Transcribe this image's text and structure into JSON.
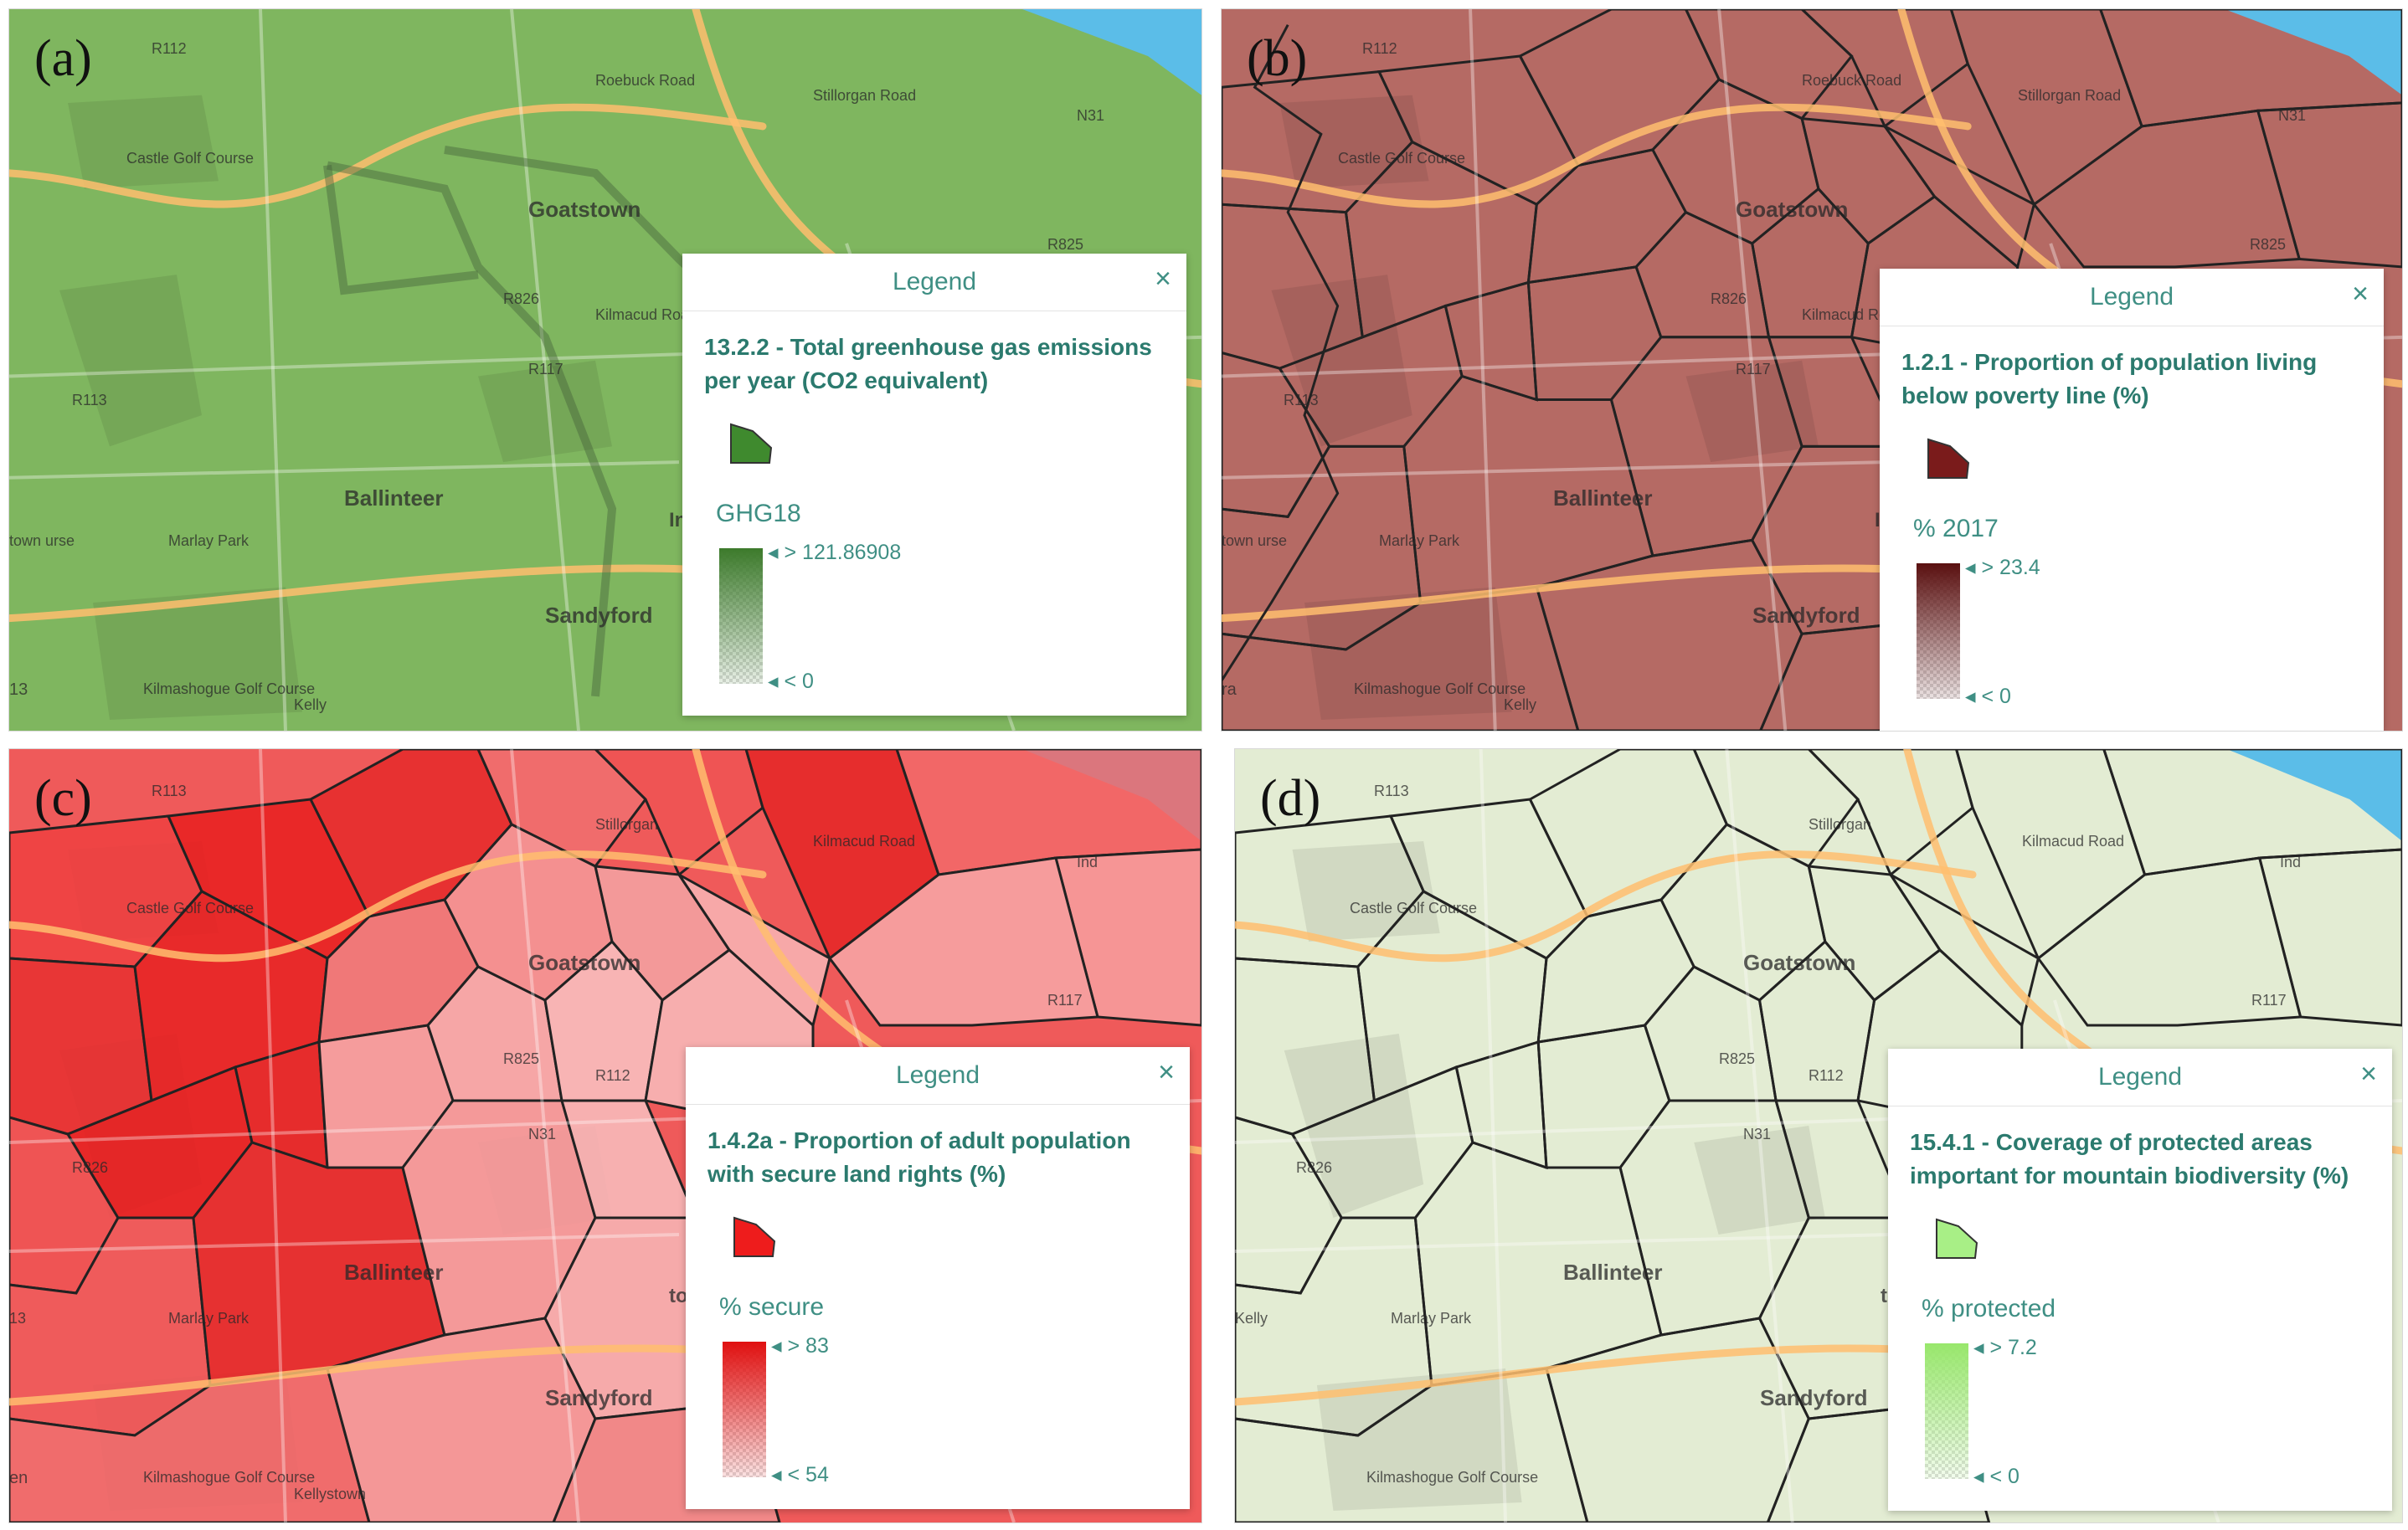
{
  "panels": [
    {
      "label": "(a)",
      "tint": "#7fb65f",
      "legend": {
        "header": "Legend",
        "close": "×",
        "title": "13.2.2 - Total greenhouse gas emissions per year (CO2 equivalent)",
        "field": "GHG18",
        "max": "> 121.86908",
        "min": "< 0",
        "color": "#3f8a2e"
      },
      "places": [
        "Goatstown",
        "Ballinteer",
        "Sandyford",
        "Castle Golf Course",
        "Marlay Park",
        "Kilmashogue Golf Course",
        "Roebuck Road",
        "Stillorgan Road",
        "Kilmacud Road",
        "R112",
        "R113",
        "R826",
        "R825",
        "R117",
        "N31",
        "Ind",
        "town urse",
        "13",
        "Kelly"
      ]
    },
    {
      "label": "(b)",
      "tint": "#b56a64",
      "legend": {
        "header": "Legend",
        "close": "×",
        "title": "1.2.1 - Proportion of population living below poverty line (%)",
        "field": "% 2017",
        "max": "> 23.4",
        "min": "< 0",
        "color": "#7a1b1b"
      },
      "places": [
        "Goatstown",
        "Ballinteer",
        "Sandyford",
        "Castle Golf Course",
        "Marlay Park",
        "Kilmashogue Golf Course",
        "Roebuck Road",
        "Stillorgan Road",
        "Kilmacud Road",
        "R112",
        "R113",
        "R826",
        "R825",
        "R117",
        "N31",
        "Ind",
        "town urse",
        "ra",
        "Kelly"
      ]
    },
    {
      "label": "(c)",
      "tint": "#ef5a5a",
      "legend": {
        "header": "Legend",
        "close": "×",
        "title": "1.4.2a - Proportion of adult population with secure land rights (%)",
        "field": "% secure",
        "max": "> 83",
        "min": "< 54",
        "color": "#ee1c1c"
      },
      "places": [
        "Goatstown",
        "Ballinteer",
        "Sandyford",
        "Castle Golf Course",
        "Marlay Park",
        "Kilmashogue Golf Course",
        "Stillorgan",
        "Kilmacud Road",
        "R112",
        "R113",
        "R826",
        "R825",
        "R117",
        "N31",
        "Ind",
        "town urse",
        "13",
        "en",
        "Kellystown"
      ]
    },
    {
      "label": "(d)",
      "tint": "#e3ecd3",
      "legend": {
        "header": "Legend",
        "close": "×",
        "title": "15.4.1 - Coverage of protected areas important for mountain biodiversity (%)",
        "field": "% protected",
        "max": "> 7.2",
        "min": "< 0",
        "color": "#a8ef86"
      },
      "places": [
        "Goatstown",
        "Ballinteer",
        "Sandyford",
        "Castle Golf Course",
        "Marlay Park",
        "Kilmashogue Golf Course",
        "Stillorgan",
        "Kilmacud Road",
        "R112",
        "R113",
        "R826",
        "R825",
        "R117",
        "N31",
        "Ind",
        "town urse",
        "Kelly"
      ]
    }
  ]
}
